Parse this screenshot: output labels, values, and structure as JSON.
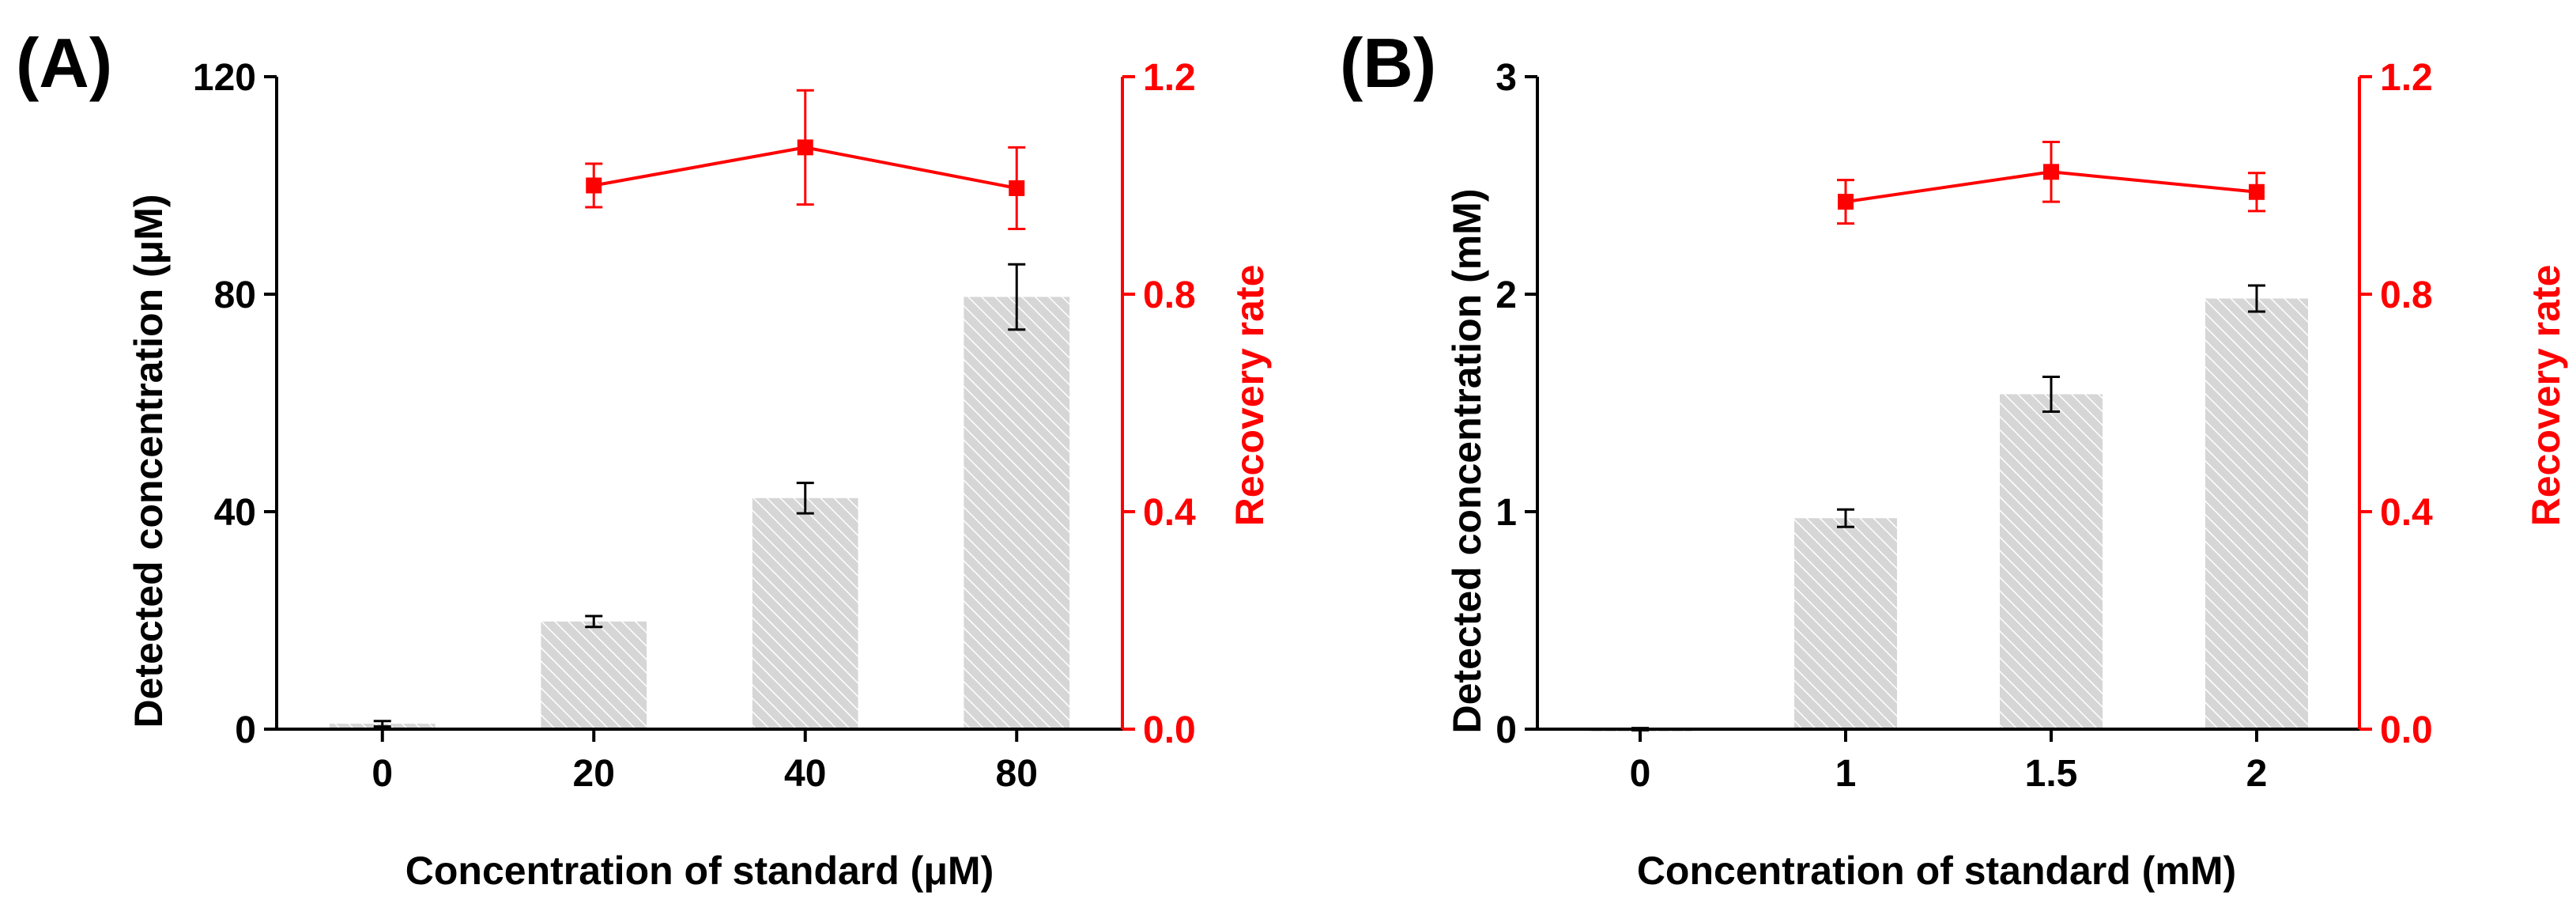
{
  "colors": {
    "axis": "#000000",
    "bar_fill": "#d6d6d6",
    "bar_hatch": "#ffffff",
    "recovery": "#ff0000",
    "background": "#ffffff"
  },
  "chart_data": [
    {
      "type": "bar",
      "panel_label": "(A)",
      "categories": [
        "0",
        "20",
        "40",
        "80"
      ],
      "xlabel": "Concentration of standard (μM)",
      "ylabel": "Detected concentration (μM)",
      "ylim": [
        0,
        120
      ],
      "yticks": [
        "0",
        "40",
        "80",
        "120"
      ],
      "yticks_values": [
        0,
        40,
        80,
        120
      ],
      "bars": {
        "name": "Detected concentration",
        "values": [
          1.0,
          19.8,
          42.5,
          79.5
        ],
        "errors": [
          0.5,
          1.0,
          2.8,
          6.0
        ]
      },
      "y2label": "Recovery rate",
      "y2lim": [
        0.0,
        1.2
      ],
      "y2ticks": [
        "0.0",
        "0.4",
        "0.8",
        "1.2"
      ],
      "y2ticks_values": [
        0.0,
        0.4,
        0.8,
        1.2
      ],
      "recovery": {
        "name": "Recovery rate",
        "type": "line",
        "category_index": [
          1,
          2,
          3
        ],
        "values": [
          1.0,
          1.07,
          0.995
        ],
        "errors": [
          0.04,
          0.105,
          0.075
        ]
      }
    },
    {
      "type": "bar",
      "panel_label": "(B)",
      "categories": [
        "0",
        "1",
        "1.5",
        "2"
      ],
      "xlabel": "Concentration of standard (mM)",
      "ylabel": "Detected concentration (mM)",
      "ylim": [
        0,
        3
      ],
      "yticks": [
        "0",
        "1",
        "2",
        "3"
      ],
      "yticks_values": [
        0,
        1,
        2,
        3
      ],
      "bars": {
        "name": "Detected concentration",
        "values": [
          0.0,
          0.97,
          1.54,
          1.98
        ],
        "errors": [
          0.005,
          0.04,
          0.08,
          0.06
        ]
      },
      "y2label": "Recovery rate",
      "y2lim": [
        0.0,
        1.2
      ],
      "y2ticks": [
        "0.0",
        "0.4",
        "0.8",
        "1.2"
      ],
      "y2ticks_values": [
        0.0,
        0.4,
        0.8,
        1.2
      ],
      "recovery": {
        "name": "Recovery rate",
        "type": "line",
        "category_index": [
          1,
          2,
          3
        ],
        "values": [
          0.97,
          1.025,
          0.988
        ],
        "errors": [
          0.04,
          0.055,
          0.035
        ]
      }
    }
  ]
}
